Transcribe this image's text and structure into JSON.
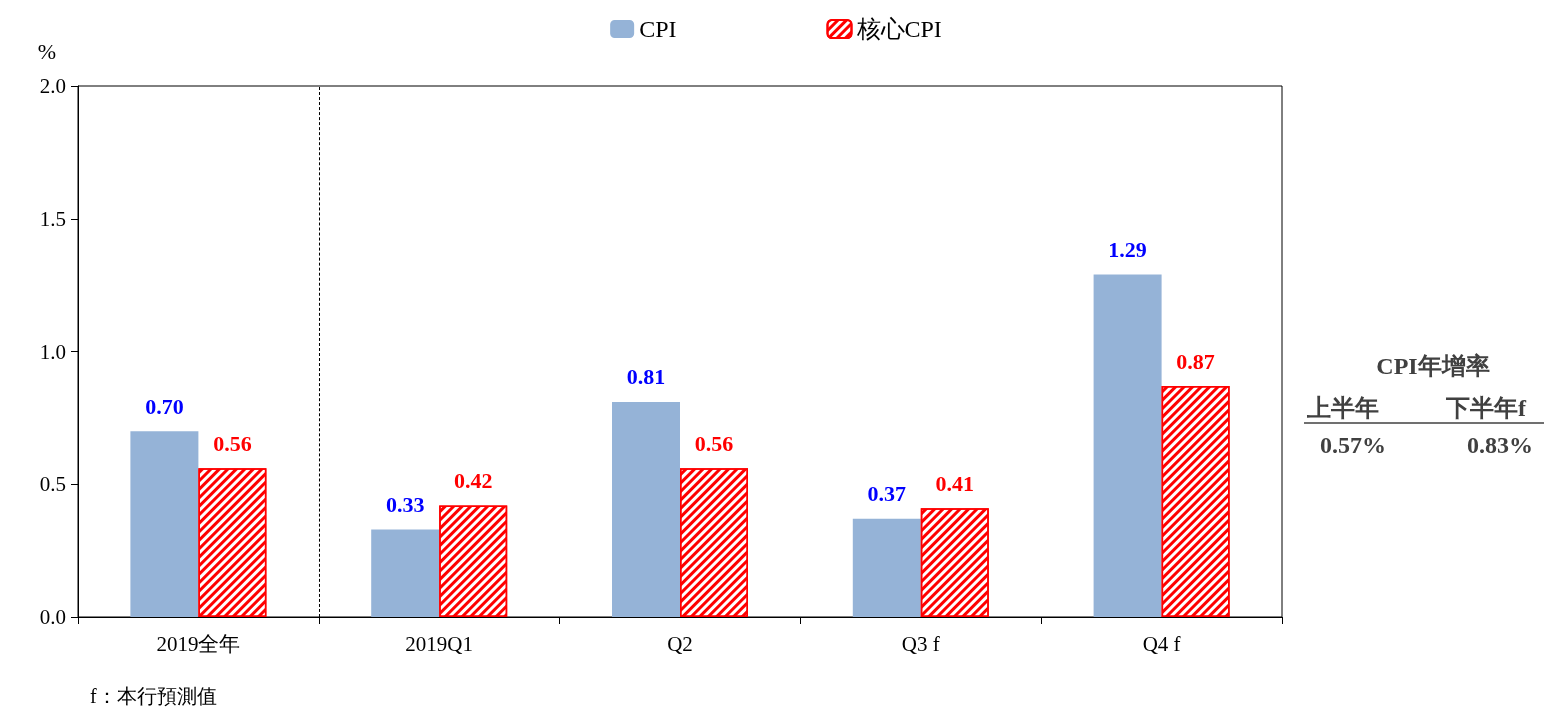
{
  "chart_data": {
    "type": "bar",
    "ylabel": "%",
    "categories": [
      "2019全年",
      "2019Q1",
      "Q2",
      "Q3 f",
      "Q4 f"
    ],
    "series": [
      {
        "name": "CPI",
        "color": "#95b3d7",
        "values": [
          0.7,
          0.33,
          0.81,
          0.37,
          1.29
        ],
        "value_labels": [
          "0.70",
          "0.33",
          "0.81",
          "0.37",
          "1.29"
        ]
      },
      {
        "name": "核心CPI",
        "color": "#ff0000",
        "values": [
          0.56,
          0.42,
          0.56,
          0.41,
          0.87
        ],
        "value_labels": [
          "0.56",
          "0.42",
          "0.56",
          "0.41",
          "0.87"
        ]
      }
    ],
    "ylim": [
      0,
      2
    ],
    "yticks": [
      {
        "value": 0,
        "label": "0.0"
      },
      {
        "value": 0.5,
        "label": "0.5"
      },
      {
        "value": 1,
        "label": "1.0"
      },
      {
        "value": 1.5,
        "label": "1.5"
      },
      {
        "value": 2,
        "label": "2.0"
      }
    ],
    "legend": "top",
    "grid": false,
    "annotations": [
      "CPI年增率",
      "上半年",
      "下半年f",
      "0.57%",
      "0.83%",
      "f：本行預測值"
    ]
  }
}
